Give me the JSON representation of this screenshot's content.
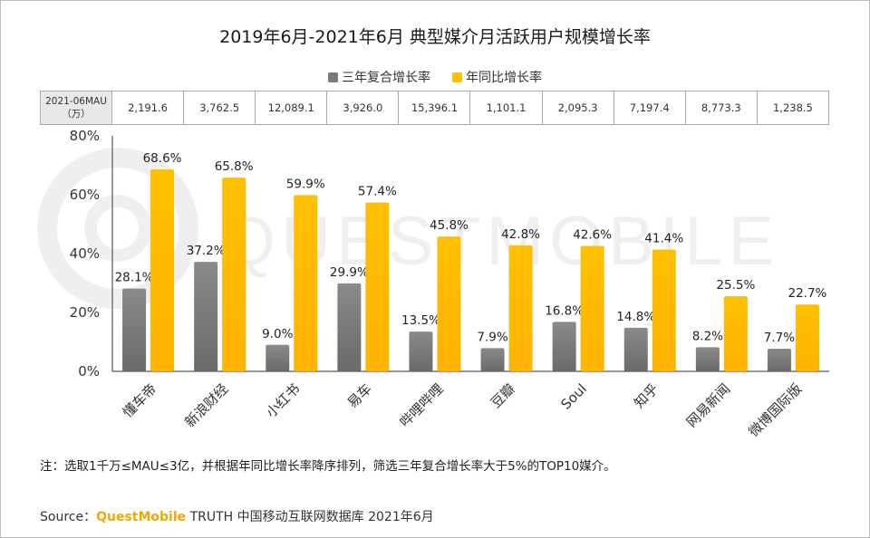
{
  "title": "2019年6月-2021年6月 典型媒介月活跃用户规模增长率",
  "watermark": "QUESTMOBILE",
  "table": {
    "header_line1": "2021-06MAU",
    "header_line2": "（万）",
    "values": [
      "2,191.6",
      "3,762.5",
      "12,089.1",
      "3,926.0",
      "15,396.1",
      "1,101.1",
      "2,095.3",
      "7,197.4",
      "8,773.3",
      "1,238.5"
    ]
  },
  "chart_data": {
    "type": "bar",
    "categories": [
      "懂车帝",
      "新浪财经",
      "小红书",
      "易车",
      "哔哩哔哩",
      "豆瓣",
      "Soul",
      "知乎",
      "网易新闻",
      "微博国际版"
    ],
    "series": [
      {
        "name": "三年复合增长率",
        "values": [
          28.1,
          37.2,
          9.0,
          29.9,
          13.5,
          7.9,
          16.8,
          14.8,
          8.2,
          7.7
        ],
        "labels": [
          "28.1%",
          "37.2%",
          "9.0%",
          "29.9%",
          "13.5%",
          "7.9%",
          "16.8%",
          "14.8%",
          "8.2%",
          "7.7%"
        ],
        "color": "#7a7a7a"
      },
      {
        "name": "年同比增长率",
        "values": [
          68.6,
          65.8,
          59.9,
          57.4,
          45.8,
          42.8,
          42.6,
          41.4,
          25.5,
          22.7
        ],
        "labels": [
          "68.6%",
          "65.8%",
          "59.9%",
          "57.4%",
          "45.8%",
          "42.8%",
          "42.6%",
          "41.4%",
          "25.5%",
          "22.7%"
        ],
        "color": "#ffc000"
      }
    ],
    "ylim": [
      0,
      80
    ],
    "yticks": [
      "0%",
      "20%",
      "40%",
      "60%",
      "80%"
    ],
    "legend_position": "top-center",
    "grid": false
  },
  "note": "注：选取1千万≤MAU≤3亿，并根据年同比增长率降序排列，筛选三年复合增长率大于5%的TOP10媒介。",
  "source": {
    "prefix": "Source：",
    "brand": "QuestMobile",
    "rest": " TRUTH 中国移动互联网数据库 2021年6月"
  }
}
